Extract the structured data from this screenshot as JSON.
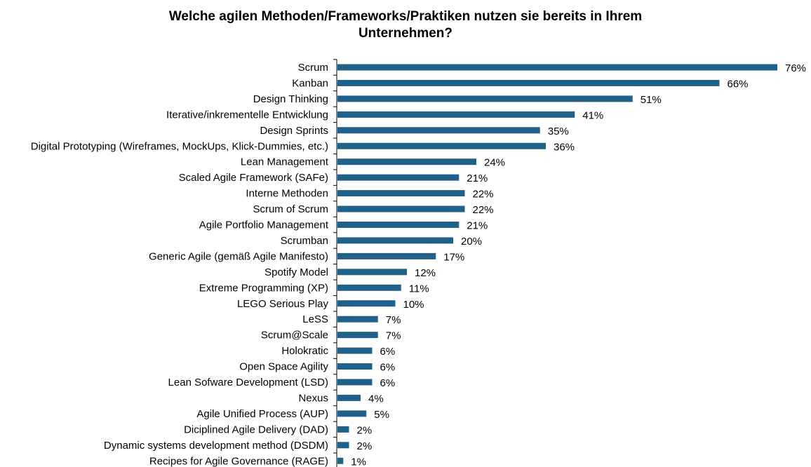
{
  "colors": {
    "bar": "#1f6189",
    "axis": "#000000",
    "text": "#000000",
    "background": "#ffffff"
  },
  "title_lines": [
    "Welche agilen Methoden/Frameworks/Praktiken  nutzen sie bereits  in Ihrem",
    "Unternehmen?"
  ],
  "chart_data": {
    "type": "bar",
    "orientation": "horizontal",
    "title": "Welche agilen Methoden/Frameworks/Praktiken nutzen sie bereits in Ihrem Unternehmen?",
    "xlabel": "",
    "ylabel": "",
    "grid": false,
    "legend": "none",
    "xlim": [
      0,
      80
    ],
    "value_suffix": "%",
    "categories": [
      "Scrum",
      "Kanban",
      "Design Thinking",
      "Iterative/inkrementelle Entwicklung",
      "Design Sprints",
      "Digital Prototyping (Wireframes, MockUps, Klick-Dummies, etc.)",
      "Lean Management",
      "Scaled Agile Framework (SAFe)",
      "Interne Methoden",
      "Scrum of Scrum",
      "Agile Portfolio Management",
      "Scrumban",
      "Generic Agile (gemäß Agile Manifesto)",
      "Spotify Model",
      "Extreme Programming (XP)",
      "LEGO Serious Play",
      "LeSS",
      "Scrum@Scale",
      "Holokratic",
      "Open Space Agility",
      "Lean Sofware Development (LSD)",
      "Nexus",
      "Agile Unified Process (AUP)",
      "Diciplined Agile Delivery (DAD)",
      "Dynamic systems development method (DSDM)",
      "Recipes for Agile Governance (RAGE)"
    ],
    "values": [
      76,
      66,
      51,
      41,
      35,
      36,
      24,
      21,
      22,
      22,
      21,
      20,
      17,
      12,
      11,
      10,
      7,
      7,
      6,
      6,
      6,
      4,
      5,
      2,
      2,
      1
    ],
    "data_labels": [
      "76%",
      "66%",
      "51%",
      "41%",
      "35%",
      "36%",
      "24%",
      "21%",
      "22%",
      "22%",
      "21%",
      "20%",
      "17%",
      "12%",
      "11%",
      "10%",
      "7%",
      "7%",
      "6%",
      "6%",
      "6%",
      "4%",
      "5%",
      "2%",
      "2%",
      "1%"
    ]
  }
}
